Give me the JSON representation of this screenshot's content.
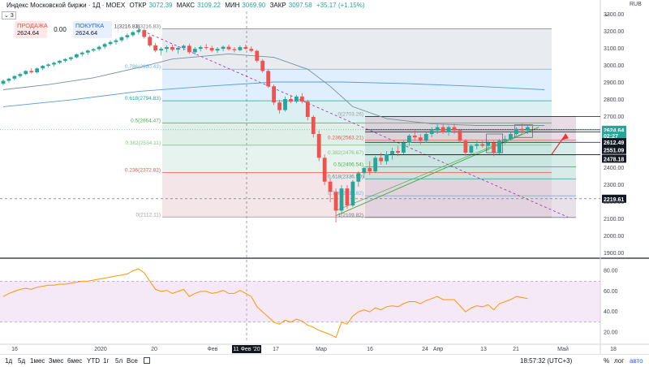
{
  "header": {
    "symbol_label": "Индекс Московской биржи · 1Д · MOEX",
    "open_label": "ОТКР",
    "open_value": "3072.39",
    "high_label": "МАКС",
    "high_value": "3109.22",
    "low_label": "МИН",
    "low_value": "3069.90",
    "close_label": "ЗАКР",
    "close_value": "3097.58",
    "change_value": "+35.17 (+1.15%)",
    "collapse_label": "3"
  },
  "trade": {
    "sell_label": "ПРОДАЖА",
    "sell_value": "2624.64",
    "spread_value": "0.00",
    "buy_label": "ПОКУПКА",
    "buy_value": "2624.64"
  },
  "currency": "RUB",
  "colors": {
    "up": "#26a69a",
    "down": "#ef5350",
    "ma": "#5b9bd5",
    "rsi": "#ff9800",
    "accent": "#2962ff"
  },
  "chart_data": [
    {
      "type": "candlestick",
      "name": "price",
      "y_ticks": [
        3300,
        3200,
        3100,
        3000,
        2900,
        2800,
        2700,
        2600,
        2500,
        2400,
        2300,
        2200,
        2100,
        2000,
        1900
      ],
      "ylim": [
        1880,
        3320
      ],
      "x_labels": [
        "16",
        "2020",
        "20",
        "Фев",
        "11 Фев '20",
        "17",
        "Мар",
        "16",
        "24",
        "Апр",
        "13",
        "21",
        "Май",
        "18"
      ],
      "candles": [
        [
          2895,
          2920,
          2885,
          2912
        ],
        [
          2912,
          2930,
          2900,
          2925
        ],
        [
          2925,
          2945,
          2915,
          2940
        ],
        [
          2940,
          2960,
          2930,
          2952
        ],
        [
          2952,
          2975,
          2945,
          2970
        ],
        [
          2970,
          2985,
          2955,
          2962
        ],
        [
          2962,
          2990,
          2955,
          2985
        ],
        [
          2985,
          3005,
          2975,
          3000
        ],
        [
          3000,
          3015,
          2990,
          3008
        ],
        [
          3008,
          3025,
          2995,
          3018
        ],
        [
          3018,
          3035,
          3010,
          3030
        ],
        [
          3030,
          3045,
          3020,
          3040
        ],
        [
          3040,
          3055,
          3030,
          3050
        ],
        [
          3050,
          3072,
          3045,
          3068
        ],
        [
          3068,
          3085,
          3055,
          3078
        ],
        [
          3078,
          3095,
          3065,
          3090
        ],
        [
          3090,
          3105,
          3080,
          3098
        ],
        [
          3098,
          3120,
          3088,
          3112
        ],
        [
          3112,
          3135,
          3100,
          3128
        ],
        [
          3128,
          3150,
          3118,
          3140
        ],
        [
          3140,
          3160,
          3125,
          3150
        ],
        [
          3150,
          3175,
          3140,
          3168
        ],
        [
          3168,
          3190,
          3155,
          3180
        ],
        [
          3180,
          3205,
          3170,
          3198
        ],
        [
          3198,
          3216,
          3185,
          3210
        ],
        [
          3210,
          3216,
          3160,
          3170
        ],
        [
          3170,
          3180,
          3110,
          3120
        ],
        [
          3120,
          3135,
          3080,
          3090
        ],
        [
          3090,
          3110,
          3060,
          3100
        ],
        [
          3100,
          3120,
          3080,
          3110
        ],
        [
          3110,
          3125,
          3085,
          3095
        ],
        [
          3095,
          3115,
          3070,
          3105
        ],
        [
          3105,
          3125,
          3090,
          3118
        ],
        [
          3118,
          3130,
          3070,
          3080
        ],
        [
          3080,
          3110,
          3065,
          3100
        ],
        [
          3100,
          3120,
          3085,
          3110
        ],
        [
          3110,
          3128,
          3095,
          3105
        ],
        [
          3105,
          3118,
          3080,
          3090
        ],
        [
          3090,
          3110,
          3075,
          3100
        ],
        [
          3100,
          3120,
          3085,
          3112
        ],
        [
          3112,
          3125,
          3090,
          3098
        ],
        [
          3098,
          3110,
          3080,
          3092
        ],
        [
          3092,
          3120,
          3085,
          3110
        ],
        [
          3110,
          3125,
          3095,
          3100
        ],
        [
          3100,
          3115,
          3080,
          3088
        ],
        [
          3088,
          3095,
          3020,
          3030
        ],
        [
          3030,
          3040,
          2960,
          2970
        ],
        [
          2970,
          2980,
          2870,
          2880
        ],
        [
          2880,
          2890,
          2770,
          2785
        ],
        [
          2785,
          2800,
          2720,
          2740
        ],
        [
          2740,
          2820,
          2730,
          2805
        ],
        [
          2805,
          2830,
          2780,
          2790
        ],
        [
          2790,
          2830,
          2780,
          2820
        ],
        [
          2820,
          2840,
          2780,
          2790
        ],
        [
          2790,
          2800,
          2680,
          2700
        ],
        [
          2700,
          2710,
          2580,
          2600
        ],
        [
          2600,
          2620,
          2440,
          2460
        ],
        [
          2460,
          2480,
          2300,
          2320
        ],
        [
          2320,
          2340,
          2200,
          2260
        ],
        [
          2260,
          2280,
          2080,
          2150
        ],
        [
          2150,
          2300,
          2130,
          2280
        ],
        [
          2280,
          2300,
          2160,
          2180
        ],
        [
          2180,
          2330,
          2170,
          2320
        ],
        [
          2320,
          2380,
          2290,
          2370
        ],
        [
          2370,
          2410,
          2340,
          2400
        ],
        [
          2400,
          2440,
          2360,
          2380
        ],
        [
          2380,
          2470,
          2370,
          2460
        ],
        [
          2460,
          2490,
          2420,
          2440
        ],
        [
          2440,
          2500,
          2420,
          2480
        ],
        [
          2480,
          2520,
          2450,
          2500
        ],
        [
          2500,
          2530,
          2470,
          2490
        ],
        [
          2490,
          2560,
          2480,
          2550
        ],
        [
          2550,
          2600,
          2530,
          2590
        ],
        [
          2590,
          2620,
          2560,
          2580
        ],
        [
          2580,
          2600,
          2540,
          2560
        ],
        [
          2560,
          2610,
          2550,
          2600
        ],
        [
          2600,
          2640,
          2580,
          2620
        ],
        [
          2620,
          2660,
          2600,
          2640
        ],
        [
          2640,
          2660,
          2600,
          2610
        ],
        [
          2610,
          2650,
          2590,
          2640
        ],
        [
          2640,
          2660,
          2600,
          2620
        ],
        [
          2620,
          2630,
          2550,
          2560
        ],
        [
          2560,
          2570,
          2470,
          2490
        ],
        [
          2490,
          2540,
          2480,
          2530
        ],
        [
          2530,
          2560,
          2510,
          2540
        ],
        [
          2540,
          2560,
          2520,
          2530
        ],
        [
          2530,
          2560,
          2500,
          2550
        ],
        [
          2550,
          2560,
          2470,
          2490
        ],
        [
          2490,
          2570,
          2480,
          2560
        ],
        [
          2560,
          2590,
          2540,
          2570
        ],
        [
          2570,
          2610,
          2560,
          2600
        ],
        [
          2600,
          2640,
          2590,
          2630
        ],
        [
          2630,
          2660,
          2600,
          2620
        ],
        [
          2620,
          2650,
          2600,
          2640
        ]
      ],
      "ma_line": [
        [
          0,
          2760
        ],
        [
          12,
          2800
        ],
        [
          24,
          2850
        ],
        [
          36,
          2880
        ],
        [
          48,
          2905
        ],
        [
          60,
          2905
        ],
        [
          72,
          2895
        ],
        [
          84,
          2880
        ],
        [
          96,
          2860
        ]
      ],
      "ma_short_line": [
        [
          0,
          2860
        ],
        [
          8,
          2890
        ],
        [
          16,
          2930
        ],
        [
          24,
          2990
        ],
        [
          30,
          3040
        ],
        [
          40,
          3070
        ],
        [
          48,
          3050
        ],
        [
          54,
          2980
        ],
        [
          58,
          2880
        ],
        [
          62,
          2760
        ],
        [
          68,
          2690
        ],
        [
          76,
          2660
        ],
        [
          84,
          2650
        ],
        [
          96,
          2650
        ]
      ],
      "fib_left": [
        {
          "level": "0",
          "value": "2112.11",
          "price": 2112.11,
          "color": "#9e9e9e"
        },
        {
          "level": "0.236",
          "value": "2372.82",
          "price": 2372.82,
          "color": "#ef5350"
        },
        {
          "level": "0.382",
          "value": "2534.11",
          "price": 2534.11,
          "color": "#81c784"
        },
        {
          "level": "0.5",
          "value": "2664.47",
          "price": 2664.47,
          "color": "#4caf50"
        },
        {
          "level": "0.618",
          "value": "2794.83",
          "price": 2794.83,
          "color": "#26a69a"
        },
        {
          "level": "0.786",
          "value": "2980.43",
          "price": 2980.43,
          "color": "#64b5f6"
        },
        {
          "level": "1",
          "value": "3216.83",
          "price": 3216.83,
          "color": "#787b86"
        }
      ],
      "fib_right": [
        {
          "level": "1",
          "value": "2109.82",
          "price": 2109.82,
          "color": "#787b86"
        },
        {
          "level": "0.786",
          "value": "2236.82",
          "price": 2236.82,
          "color": "#64b5f6"
        },
        {
          "level": "0.618",
          "value": "2336.50",
          "price": 2336.5,
          "color": "#26a69a"
        },
        {
          "level": "0.5",
          "value": "2406.54",
          "price": 2406.54,
          "color": "#4caf50"
        },
        {
          "level": "0.382",
          "value": "2476.67",
          "price": 2476.67,
          "color": "#81c784"
        },
        {
          "level": "0.236",
          "value": "2563.21",
          "price": 2563.21,
          "color": "#ef5350"
        },
        {
          "level": "0",
          "value": "2703.26",
          "price": 2703.26,
          "color": "#9e9e9e"
        }
      ],
      "price_tags": [
        {
          "value": "2624.64",
          "price": 2624.64,
          "color": "#26a69a"
        },
        {
          "value": "02:27",
          "price": 2590,
          "color": "#26a69a"
        },
        {
          "value": "2612.49",
          "price": 2552,
          "color": "#131722"
        },
        {
          "value": "2551.09",
          "price": 2506,
          "color": "#131722"
        },
        {
          "value": "2478.18",
          "price": 2455,
          "color": "#131722"
        },
        {
          "value": "2219.61",
          "price": 2219.61,
          "color": "#131722"
        }
      ]
    },
    {
      "type": "line",
      "name": "RSI",
      "y_ticks": [
        80,
        60,
        40,
        20
      ],
      "ylim": [
        10,
        90
      ],
      "bands": [
        30,
        70
      ],
      "values": [
        55,
        58,
        60,
        62,
        63,
        62,
        64,
        65,
        66,
        66,
        67,
        67,
        68,
        69,
        70,
        70,
        71,
        72,
        73,
        74,
        75,
        76,
        77,
        80,
        82,
        78,
        70,
        62,
        60,
        61,
        58,
        60,
        62,
        55,
        58,
        60,
        60,
        58,
        59,
        61,
        58,
        58,
        61,
        58,
        55,
        45,
        40,
        35,
        30,
        28,
        32,
        30,
        33,
        31,
        27,
        25,
        22,
        20,
        18,
        15,
        30,
        28,
        36,
        40,
        42,
        40,
        44,
        42,
        45,
        46,
        45,
        48,
        50,
        50,
        48,
        51,
        53,
        55,
        52,
        52,
        52,
        46,
        40,
        44,
        46,
        45,
        47,
        42,
        48,
        50,
        52,
        55,
        54,
        53
      ]
    }
  ],
  "bottom_bar": {
    "ranges": [
      "1д",
      "5д",
      "1мес",
      "3мес",
      "6мес",
      "YTD",
      "1г",
      "5л",
      "Все"
    ],
    "clock": "18:57:32 (UTC+3)",
    "pct_label": "%",
    "log_label": "лог",
    "auto_label": "авто"
  }
}
